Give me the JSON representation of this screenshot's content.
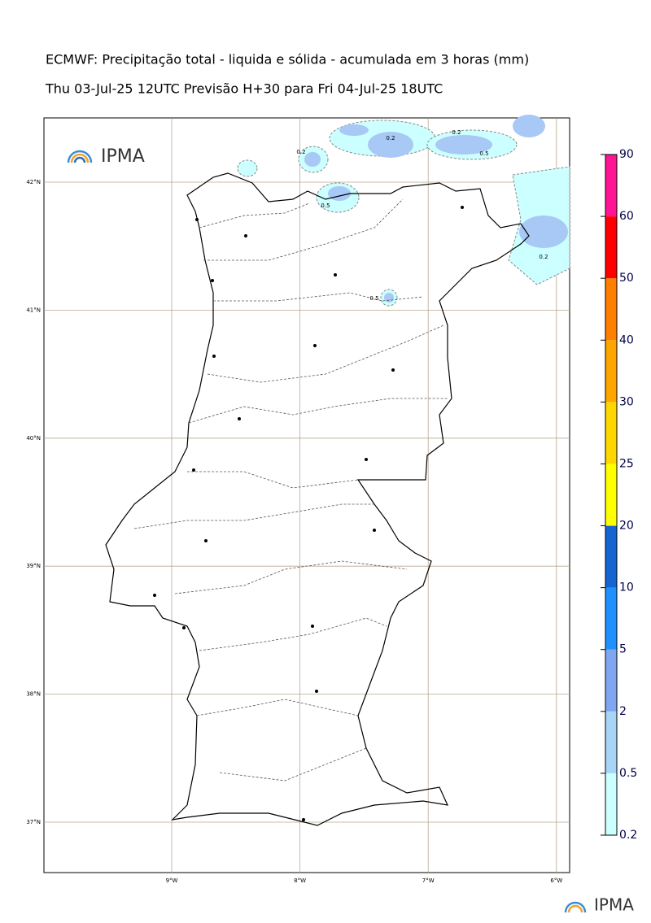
{
  "header": {
    "title": "ECMWF: Precipitação total - liquida e sólida - acumulada em 3 horas (mm)",
    "subtitle": "Thu 03-Jul-25 12UTC Previsão H+30 para Fri 04-Jul-25 18UTC"
  },
  "map": {
    "lat_lines": [
      {
        "value": 42,
        "label": "42°N"
      },
      {
        "value": 41,
        "label": "41°N"
      },
      {
        "value": 40,
        "label": "40°N"
      },
      {
        "value": 39,
        "label": "39°N"
      },
      {
        "value": 38,
        "label": "38°N"
      },
      {
        "value": 37,
        "label": "37°N"
      }
    ],
    "lon_lines": [
      {
        "value": -9,
        "label": "9°W"
      },
      {
        "value": -8,
        "label": "8°W"
      },
      {
        "value": -7,
        "label": "7°W"
      },
      {
        "value": -6,
        "label": "6°W"
      }
    ],
    "contour_labels": [
      "0.2",
      "0.5",
      "0.2",
      "0.5",
      "0.2",
      "0.5",
      "0.2"
    ]
  },
  "logo": "IPMA",
  "footer_logo": "IPMA",
  "colorbar": {
    "levels": [
      0.2,
      0.5,
      2,
      5,
      10,
      20,
      25,
      30,
      40,
      50,
      60,
      90
    ],
    "colors": [
      "#ccffff",
      "#a8d4f5",
      "#7fa6f0",
      "#1e90ff",
      "#1464d2",
      "#ffff00",
      "#ffd700",
      "#ffa500",
      "#ff7f00",
      "#ff0000",
      "#ff1493"
    ]
  }
}
